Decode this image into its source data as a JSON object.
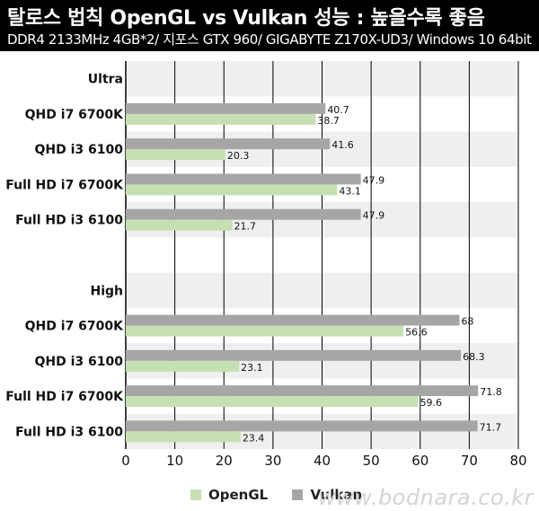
{
  "header": {
    "title": "탈로스 법칙 OpenGL vs Vulkan 성능 : 높을수록 좋음",
    "subtitle": "DDR4 2133MHz 4GB*2/ 지포스 GTX 960/ GIGABYTE Z170X-UD3/ Windows 10 64bit"
  },
  "watermark": "www.bodnara.co.kr",
  "chart_data": {
    "type": "bar",
    "orientation": "horizontal",
    "xlim": [
      0,
      80
    ],
    "xticks": [
      "0",
      "10",
      "20",
      "30",
      "40",
      "50",
      "60",
      "70",
      "80"
    ],
    "categories": [
      "Ultra",
      "QHD i7 6700K",
      "QHD i3 6100",
      "Full HD i7 6700K",
      "Full HD i3 6100",
      "",
      "High",
      "QHD i7 6700K",
      "QHD i3 6100",
      "Full HD i7 6700K",
      "Full HD i3 6100"
    ],
    "series": [
      {
        "name": "Vulkan",
        "color": "#a6a6a6",
        "values": [
          null,
          40.7,
          41.6,
          47.9,
          47.9,
          null,
          null,
          68,
          68.3,
          71.8,
          71.7
        ]
      },
      {
        "name": "OpenGL",
        "color": "#c6e0b4",
        "values": [
          null,
          38.7,
          20.3,
          43.1,
          21.7,
          null,
          null,
          56.6,
          23.1,
          59.6,
          23.4
        ]
      }
    ],
    "legend": "bottom",
    "grid": true,
    "band_color": "#efefef"
  }
}
